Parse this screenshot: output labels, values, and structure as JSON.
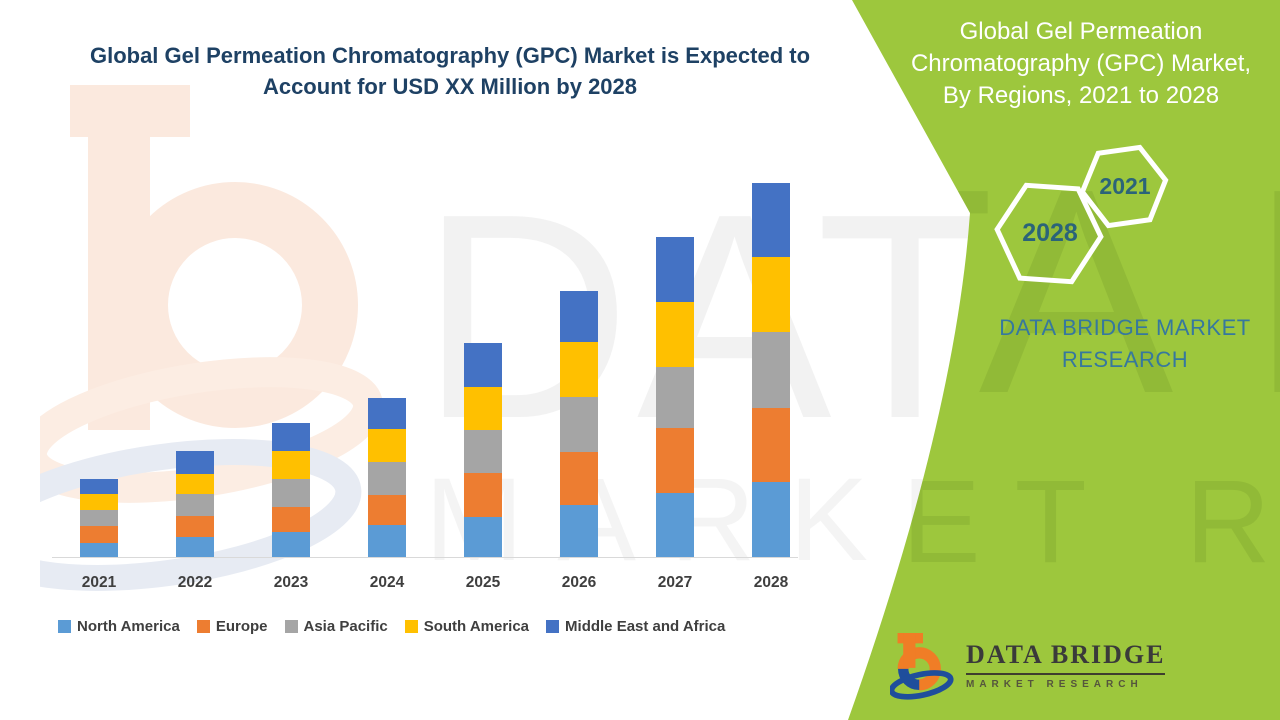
{
  "chart": {
    "title_lines": [
      "Global Gel Permeation Chromatography (GPC) Market is Expected to",
      "Account for USD XX Million by 2028"
    ],
    "title_color": "#1E4164",
    "axis_line_color": "#D9D9D9",
    "axis_label_color": "#3F3F3F",
    "legend_position": "bottom"
  },
  "chart_data": {
    "type": "bar",
    "stacked": true,
    "title": "Global Gel Permeation Chromatography (GPC) Market is Expected to Account for USD XX Million by 2028",
    "xlabel": "",
    "ylabel": "",
    "value_axis_visible": false,
    "values_note": "No numeric axis shown (values displayed as 'USD XX Million'); series values below are relative estimates read from bar heights.",
    "categories": [
      "2021",
      "2022",
      "2023",
      "2024",
      "2025",
      "2026",
      "2027",
      "2028"
    ],
    "series": [
      {
        "name": "North America",
        "color": "#5B9BD5",
        "values": [
          14,
          20,
          25,
          32,
          40,
          52,
          64,
          75
        ]
      },
      {
        "name": "Europe",
        "color": "#ED7D31",
        "values": [
          17,
          21,
          25,
          30,
          44,
          53,
          65,
          74
        ]
      },
      {
        "name": "Asia Pacific",
        "color": "#A5A5A5",
        "values": [
          16,
          22,
          28,
          33,
          43,
          55,
          61,
          76
        ]
      },
      {
        "name": "South America",
        "color": "#FFC000",
        "values": [
          16,
          20,
          28,
          33,
          43,
          55,
          65,
          75
        ]
      },
      {
        "name": "Middle East and Africa",
        "color": "#4472C4",
        "values": [
          15,
          23,
          28,
          31,
          44,
          51,
          65,
          74
        ]
      }
    ],
    "grid": false,
    "legend_position": "bottom"
  },
  "side_panel": {
    "background_color": "#9DC73D",
    "heading_lines": [
      "Global Gel Permeation",
      "Chromatography (GPC) Market,",
      "By Regions, 2021 to 2028"
    ],
    "heading_color": "#FFFFFF",
    "hexagons": [
      {
        "label": "2021"
      },
      {
        "label": "2028"
      }
    ],
    "hexagon_text_color": "#2B6479",
    "brand_lines": [
      "DATA BRIDGE MARKET",
      "RESEARCH"
    ],
    "brand_color": "#36789E"
  },
  "footer_logo": {
    "brand": "DATA BRIDGE",
    "tagline": "MARKET RESEARCH"
  },
  "watermark": {
    "row1": "DATA BRIDGE",
    "row2": "MARKET RESEARCH"
  }
}
